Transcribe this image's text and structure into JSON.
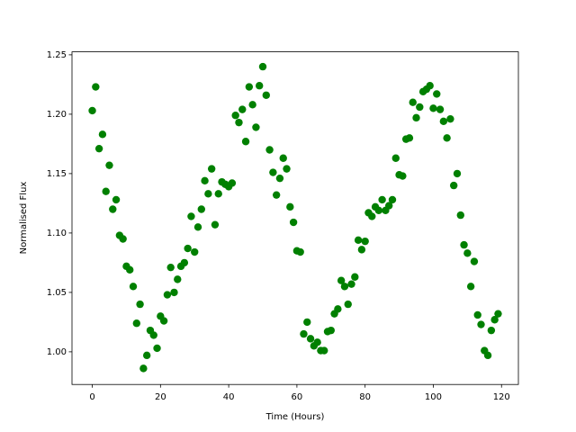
{
  "chart_data": {
    "type": "scatter",
    "xlabel": "Time (Hours)",
    "ylabel": "Normalised Flux",
    "color": "#008000",
    "x": [
      0,
      1,
      2,
      3,
      4,
      5,
      6,
      7,
      8,
      9,
      10,
      11,
      12,
      13,
      14,
      15,
      16,
      17,
      18,
      19,
      20,
      21,
      22,
      23,
      24,
      25,
      26,
      27,
      28,
      29,
      30,
      31,
      32,
      33,
      34,
      35,
      36,
      37,
      38,
      39,
      40,
      41,
      42,
      43,
      44,
      45,
      46,
      47,
      48,
      49,
      50,
      51,
      52,
      53,
      54,
      55,
      56,
      57,
      58,
      59,
      60,
      61,
      62,
      63,
      64,
      65,
      66,
      67,
      68,
      69,
      70,
      71,
      72,
      73,
      74,
      75,
      76,
      77,
      78,
      79,
      80,
      81,
      82,
      83,
      84,
      85,
      86,
      87,
      88,
      89,
      90,
      91,
      92,
      93,
      94,
      95,
      96,
      97,
      98,
      99,
      100,
      101,
      102,
      103,
      104,
      105,
      106,
      107,
      108,
      109,
      110,
      111,
      112,
      113,
      114,
      115,
      116,
      117,
      118,
      119
    ],
    "values": [
      1.203,
      1.223,
      1.171,
      1.183,
      1.135,
      1.157,
      1.12,
      1.128,
      1.098,
      1.095,
      1.072,
      1.069,
      1.055,
      1.024,
      1.04,
      0.986,
      0.997,
      1.018,
      1.014,
      1.003,
      1.03,
      1.026,
      1.048,
      1.071,
      1.05,
      1.061,
      1.072,
      1.075,
      1.087,
      1.114,
      1.084,
      1.105,
      1.12,
      1.144,
      1.133,
      1.154,
      1.107,
      1.133,
      1.143,
      1.141,
      1.139,
      1.142,
      1.199,
      1.193,
      1.204,
      1.177,
      1.223,
      1.208,
      1.189,
      1.224,
      1.24,
      1.216,
      1.17,
      1.151,
      1.132,
      1.146,
      1.163,
      1.154,
      1.122,
      1.109,
      1.085,
      1.084,
      1.015,
      1.025,
      1.011,
      1.005,
      1.008,
      1.001,
      1.001,
      1.017,
      1.018,
      1.032,
      1.036,
      1.06,
      1.055,
      1.04,
      1.057,
      1.063,
      1.094,
      1.086,
      1.093,
      1.117,
      1.114,
      1.122,
      1.119,
      1.128,
      1.119,
      1.123,
      1.128,
      1.163,
      1.149,
      1.148,
      1.179,
      1.18,
      1.21,
      1.197,
      1.206,
      1.219,
      1.221,
      1.224,
      1.205,
      1.217,
      1.204,
      1.194,
      1.18,
      1.196,
      1.14,
      1.15,
      1.115,
      1.09,
      1.083,
      1.055,
      1.076,
      1.031,
      1.023,
      1.001,
      0.997,
      1.018,
      1.027,
      1.032
    ],
    "xlim": [
      -5.95,
      124.95
    ],
    "ylim": [
      0.9725,
      1.2525
    ],
    "xticks": [
      0,
      20,
      40,
      60,
      80,
      100,
      120
    ],
    "yticks": [
      {
        "value": 1.0,
        "label": "1.00"
      },
      {
        "value": 1.05,
        "label": "1.05"
      },
      {
        "value": 1.1,
        "label": "1.10"
      },
      {
        "value": 1.15,
        "label": "1.15"
      },
      {
        "value": 1.2,
        "label": "1.20"
      },
      {
        "value": 1.25,
        "label": "1.25"
      }
    ],
    "grid": false
  }
}
